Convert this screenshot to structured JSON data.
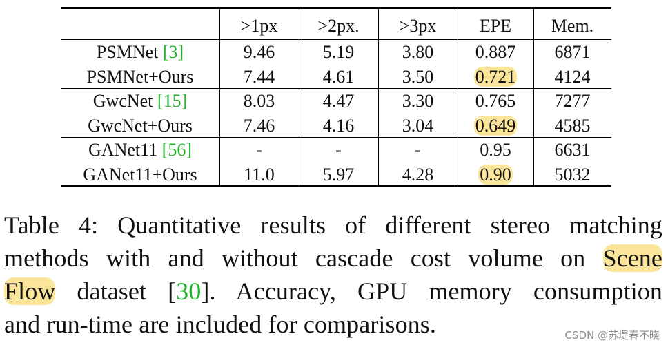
{
  "table": {
    "columns": [
      "",
      ">1px",
      ">2px.",
      ">3px",
      "EPE",
      "Mem."
    ],
    "rows": [
      {
        "method": "PSMNet ",
        "cite": "[3]",
        "c1": "9.46",
        "c2": "5.19",
        "c3": "3.80",
        "epe": "0.887",
        "mem": "6871",
        "epe_highlight": false
      },
      {
        "method": "PSMNet+Ours",
        "cite": "",
        "c1": "7.44",
        "c2": "4.61",
        "c3": "3.50",
        "epe": "0.721",
        "mem": "4124",
        "epe_highlight": true
      },
      {
        "method": "GwcNet ",
        "cite": "[15]",
        "c1": "8.03",
        "c2": "4.47",
        "c3": "3.30",
        "epe": "0.765",
        "mem": "7277",
        "epe_highlight": false
      },
      {
        "method": "GwcNet+Ours",
        "cite": "",
        "c1": "7.46",
        "c2": "4.16",
        "c3": "3.04",
        "epe": "0.649",
        "mem": "4585",
        "epe_highlight": true
      },
      {
        "method": "GANet11 ",
        "cite": "[56]",
        "c1": "-",
        "c2": "-",
        "c3": "-",
        "epe": "0.95",
        "mem": "6631",
        "epe_highlight": false
      },
      {
        "method": "GANet11+Ours",
        "cite": "",
        "c1": "11.0",
        "c2": "5.97",
        "c3": "4.28",
        "epe": "0.90",
        "mem": "5032",
        "epe_highlight": true
      }
    ],
    "highlight_color": "#fbe59a",
    "citation_color": "#23b12a"
  },
  "caption": {
    "line1": "Table 4:  Quantitative results of different stereo matching",
    "line2_pre": "methods with and without cascade cost volume on ",
    "line2_hl": "Scene",
    "line3_hl": "Flow",
    "line3_mid": " dataset [",
    "line3_cite": "30",
    "line3_post": "].  Accuracy, GPU memory consumption",
    "line4": "and run-time are included for comparisons."
  },
  "watermark": "CSDN @苏堤春不晓"
}
